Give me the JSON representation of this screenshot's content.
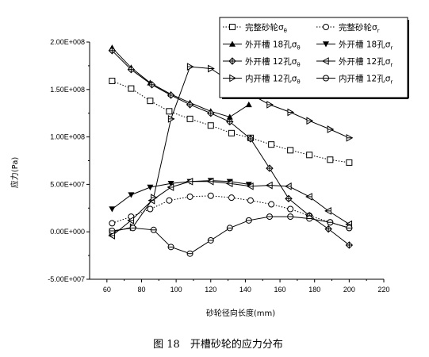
{
  "chart_data": {
    "type": "line",
    "caption": "图 18　开槽砂轮的应力分布",
    "xlabel": "砂轮径向长度(mm)",
    "ylabel": "应力(Pa)",
    "xlim": [
      50,
      220
    ],
    "ylim": [
      -50000000,
      200000000
    ],
    "xticks": [
      "60",
      "80",
      "100",
      "120",
      "140",
      "160",
      "180",
      "200",
      "220"
    ],
    "yticks": [
      "-5.00E+007",
      "0.00E+000",
      "5.00E+007",
      "1.00E+008",
      "1.50E+008",
      "2.00E+008"
    ],
    "legend_position": "top-right",
    "series": [
      {
        "name": "完整砂轮",
        "sub": "θ",
        "marker": "square",
        "line": "dotted",
        "x": [
          63,
          74,
          85,
          96,
          108,
          120,
          132,
          143,
          155,
          166,
          177,
          189,
          200
        ],
        "y": [
          159000000,
          151000000,
          138000000,
          127000000,
          119000000,
          112000000,
          104000000,
          99000000,
          92000000,
          86000000,
          81000000,
          76000000,
          73000000
        ]
      },
      {
        "name": "完整砂轮",
        "sub": "r",
        "marker": "circle",
        "line": "dotted",
        "x": [
          63,
          74,
          85,
          96,
          108,
          120,
          132,
          143,
          155,
          166,
          177,
          189,
          200
        ],
        "y": [
          9000000,
          16000000,
          24000000,
          33000000,
          37000000,
          38000000,
          36000000,
          33000000,
          29000000,
          24000000,
          17000000,
          10000000,
          4000000
        ]
      },
      {
        "name": "外开槽 18孔",
        "sub": "θ",
        "marker": "triangle-up",
        "line": "solid",
        "x": [
          63,
          74,
          85,
          97,
          108,
          120,
          131,
          142
        ],
        "y": [
          194000000,
          173000000,
          157000000,
          145000000,
          136000000,
          127000000,
          121000000,
          134000000
        ]
      },
      {
        "name": "外开槽 18孔",
        "sub": "r",
        "marker": "triangle-down",
        "line": "solid",
        "x": [
          63,
          74,
          85,
          97,
          108,
          120,
          131,
          142
        ],
        "y": [
          24000000,
          39000000,
          47000000,
          51000000,
          53000000,
          54000000,
          53000000,
          50000000
        ]
      },
      {
        "name": "外开槽 12孔",
        "sub": "θ",
        "marker": "diamond-cross",
        "line": "solid",
        "x": [
          63,
          74,
          86,
          97,
          108,
          120,
          131,
          143,
          154,
          165,
          177,
          188,
          200
        ],
        "y": [
          191000000,
          171000000,
          155000000,
          144000000,
          134000000,
          125000000,
          116000000,
          98000000,
          67000000,
          35000000,
          17000000,
          3000000,
          -14000000
        ]
      },
      {
        "name": "外开槽 12孔",
        "sub": "r",
        "marker": "triangle-left",
        "line": "solid",
        "x": [
          63,
          74,
          86,
          97,
          108,
          120,
          131,
          143,
          154,
          165,
          177,
          188,
          200
        ],
        "y": [
          -4000000,
          12000000,
          33000000,
          47000000,
          53000000,
          53000000,
          51000000,
          48000000,
          49000000,
          48000000,
          37000000,
          22000000,
          8000000
        ]
      },
      {
        "name": "内开槽 12孔",
        "sub": "θ",
        "marker": "triangle-right",
        "line": "solid",
        "x": [
          63,
          75,
          87,
          97,
          108,
          120,
          131,
          142,
          154,
          166,
          177,
          189,
          200
        ],
        "y": [
          0,
          5000000,
          36000000,
          119000000,
          174000000,
          172000000,
          159000000,
          146000000,
          134000000,
          126000000,
          117000000,
          108000000,
          99000000
        ]
      },
      {
        "name": "内开槽 12孔",
        "sub": "r",
        "marker": "circle-line",
        "line": "solid",
        "x": [
          63,
          75,
          87,
          97,
          108,
          120,
          131,
          142,
          154,
          166,
          177,
          189,
          200
        ],
        "y": [
          1000000,
          4000000,
          2000000,
          -16000000,
          -23000000,
          -9000000,
          4000000,
          12000000,
          16000000,
          16000000,
          14000000,
          10000000,
          4000000
        ]
      }
    ]
  }
}
